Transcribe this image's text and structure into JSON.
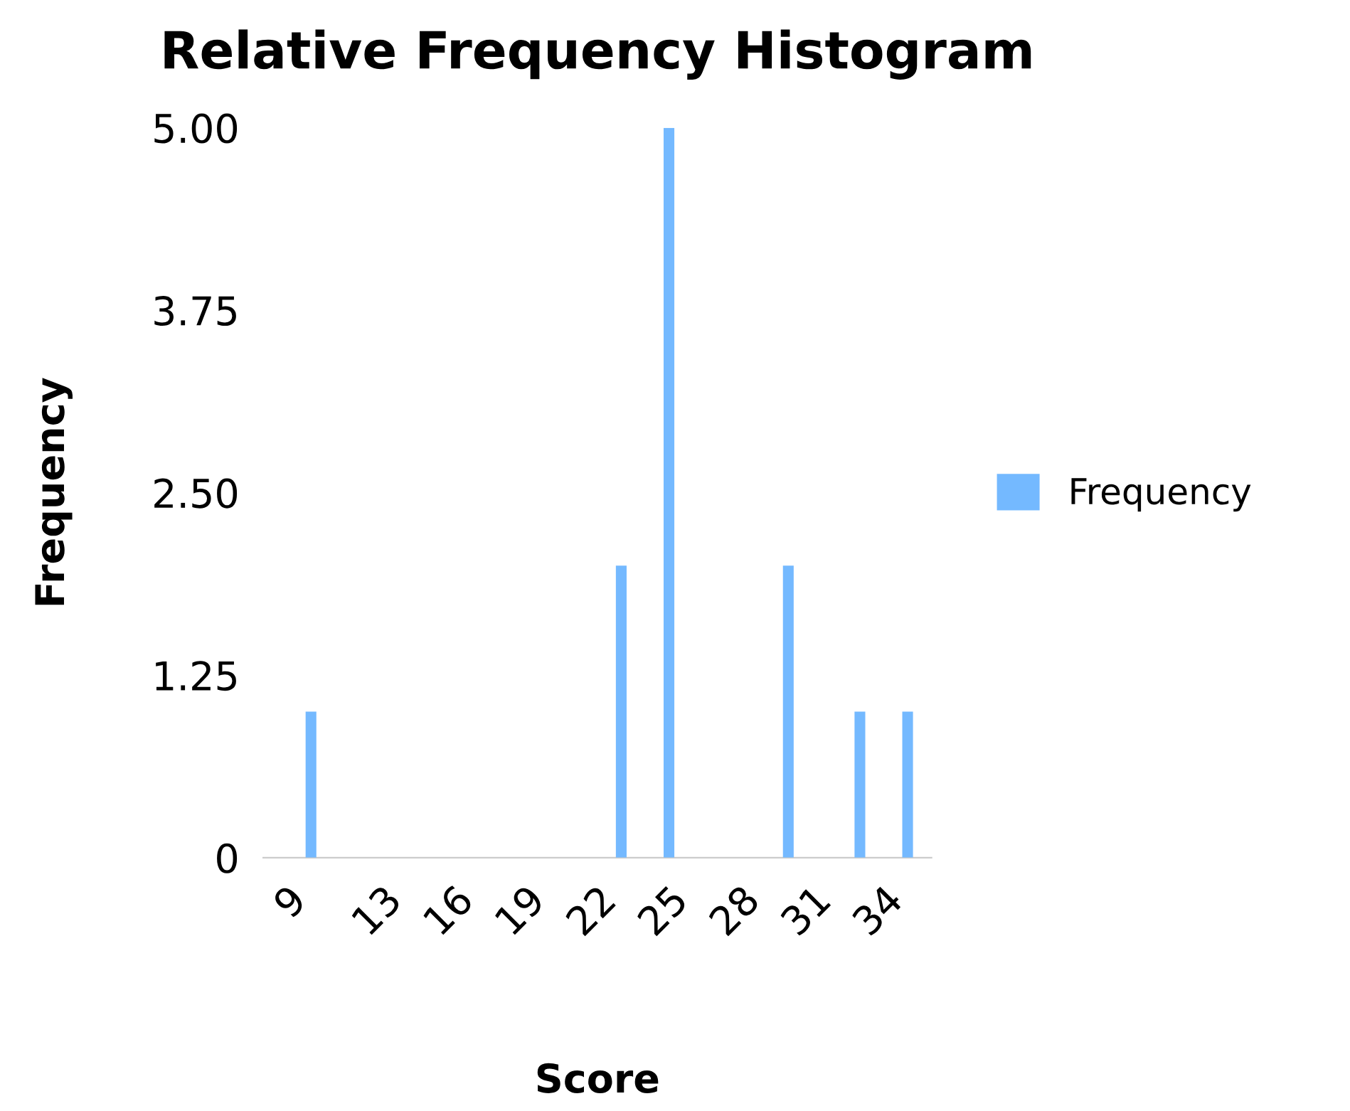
{
  "chart_data": {
    "type": "bar",
    "title": "Relative Frequency Histogram",
    "xlabel": "Score",
    "ylabel": "Frequency",
    "x": [
      10,
      23,
      25,
      30,
      33,
      35
    ],
    "series": [
      {
        "name": "Frequency",
        "color": "#74b9ff",
        "values": [
          1,
          2,
          5,
          2,
          1,
          1
        ]
      }
    ],
    "xlim": [
      8,
      36
    ],
    "xticks": [
      9,
      13,
      16,
      19,
      22,
      25,
      28,
      31,
      34
    ],
    "ylim": [
      0,
      5
    ],
    "yticks": [
      0,
      {
        "value": 1.25,
        "label": "1.25"
      },
      {
        "value": 2.5,
        "label": "2.50"
      },
      {
        "value": 3.75,
        "label": "3.75"
      },
      {
        "value": 5,
        "label": "5.00"
      }
    ],
    "grid": false,
    "legend": "right"
  }
}
